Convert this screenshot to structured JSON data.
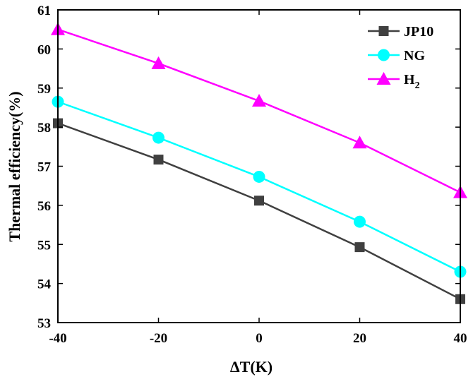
{
  "chart_data": {
    "type": "line",
    "xlabel": "ΔT(K)",
    "ylabel": "Thermal efficiency(%)",
    "x": [
      -40,
      -20,
      0,
      20,
      40
    ],
    "xlim": [
      -40,
      40
    ],
    "ylim": [
      53,
      61
    ],
    "xticks": [
      -40,
      -20,
      0,
      20,
      40
    ],
    "xtick_labels": [
      "-40",
      "-20",
      "0",
      "20",
      "40"
    ],
    "yticks": [
      53,
      54,
      55,
      56,
      57,
      58,
      59,
      60,
      61
    ],
    "ytick_labels": [
      "53",
      "54",
      "55",
      "56",
      "57",
      "58",
      "59",
      "60",
      "61"
    ],
    "grid": false,
    "legend_position": "top-right",
    "series": [
      {
        "name": "JP10",
        "name_sub": "",
        "values": [
          58.1,
          57.17,
          56.12,
          54.93,
          53.6
        ],
        "color": "#404040",
        "marker": "square"
      },
      {
        "name": "NG",
        "name_sub": "",
        "values": [
          58.65,
          57.73,
          56.73,
          55.58,
          54.3
        ],
        "color": "#00ffff",
        "marker": "circle"
      },
      {
        "name": "H",
        "name_sub": "2",
        "values": [
          60.5,
          59.63,
          58.67,
          57.6,
          56.33
        ],
        "color": "#ff00ff",
        "marker": "triangle"
      }
    ]
  }
}
